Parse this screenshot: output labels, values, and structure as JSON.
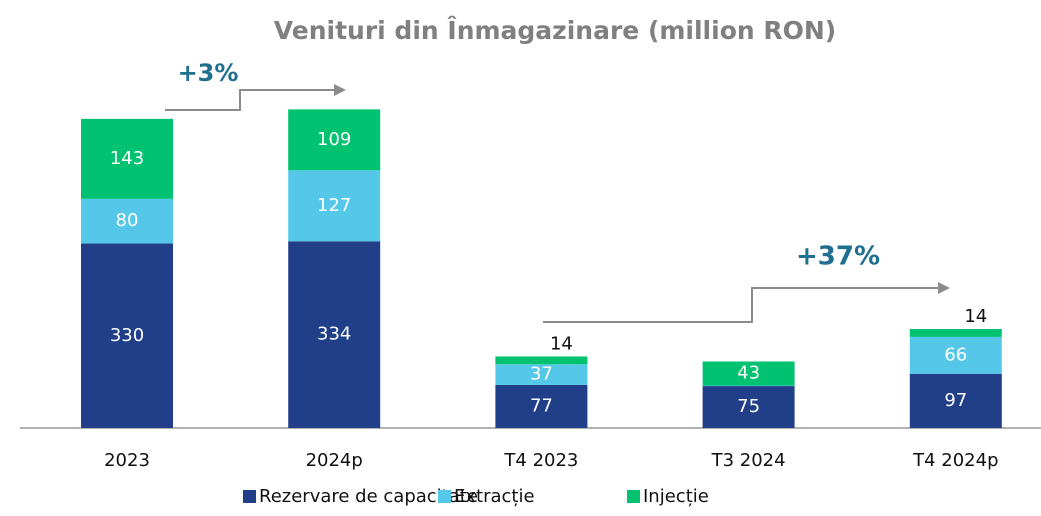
{
  "chart_data": {
    "type": "stacked_bar",
    "title": "Venituri din Înmagazinare (million RON)",
    "categories": [
      "2023",
      "2024p",
      "T4 2023",
      "T3 2024",
      "T4 2024p"
    ],
    "series": [
      {
        "name": "Rezervare de capacitate",
        "color": "#203f88",
        "values": [
          330,
          334,
          77,
          75,
          97
        ]
      },
      {
        "name": "Extracție",
        "color": "#55c8ea",
        "values": [
          80,
          127,
          37,
          1,
          66
        ]
      },
      {
        "name": "Injecție",
        "color": "#00c270",
        "values": [
          143,
          109,
          14,
          43,
          14
        ]
      }
    ],
    "annotations": [
      "+3%",
      "+37%"
    ],
    "legend": "bottom"
  }
}
